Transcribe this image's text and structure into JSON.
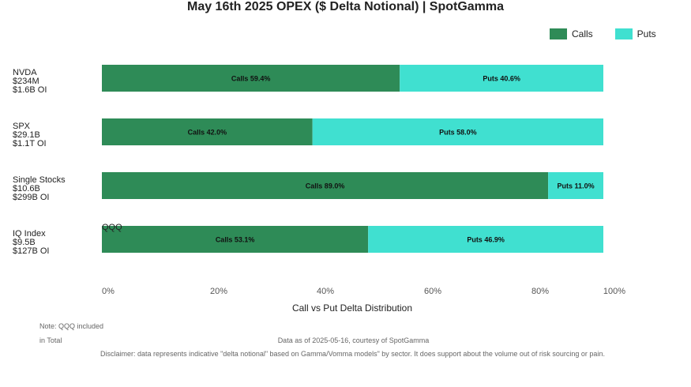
{
  "chart_data": {
    "type": "bar",
    "orientation": "horizontal",
    "stacked": true,
    "title": "May 16th 2025 OPEX ($ Delta Notional) | SpotGamma",
    "xlabel": "Call vs Put Delta Distribution",
    "xlim": [
      0,
      100
    ],
    "x_ticks": [
      "0%",
      "20%",
      "40%",
      "60%",
      "80%",
      "100%"
    ],
    "legend": {
      "position": "top-right",
      "entries": [
        "Calls",
        "Puts"
      ]
    },
    "colors": {
      "calls": "#2e8b57",
      "puts": "#40e0d0"
    },
    "categories": [
      {
        "lines": [
          "NVDA",
          "$234M",
          "$1.6B OI"
        ]
      },
      {
        "lines": [
          "SPX",
          "$29.1B",
          "$1.1T OI"
        ]
      },
      {
        "lines": [
          "Single Stocks",
          "$10.6B",
          "$299B OI"
        ]
      },
      {
        "lines": [
          "IQ Index",
          "$9.5B",
          "$127B OI"
        ]
      }
    ],
    "series": [
      {
        "name": "Calls",
        "values": [
          59.4,
          42.0,
          89.0,
          53.1
        ],
        "labels": [
          "Calls 59.4%",
          "Calls 42.0%",
          "Calls 89.0%",
          "Calls 53.1%"
        ]
      },
      {
        "name": "Puts",
        "values": [
          40.6,
          58.0,
          11.0,
          46.9
        ],
        "labels": [
          "Puts 40.6%",
          "Puts 58.0%",
          "Puts 11.0%",
          "Puts 46.9%"
        ]
      }
    ],
    "stray_label": "QQQ"
  },
  "footer": {
    "note_line1": "Note: QQQ included",
    "note_line2": "in Total",
    "source": "Data as of 2025-05-16, courtesy of SpotGamma",
    "disclaimer": "Disclaimer: data represents indicative \"delta notional\" based on Gamma/Vomma models\" by sector. It does support about the volume out of risk sourcing or pain."
  }
}
